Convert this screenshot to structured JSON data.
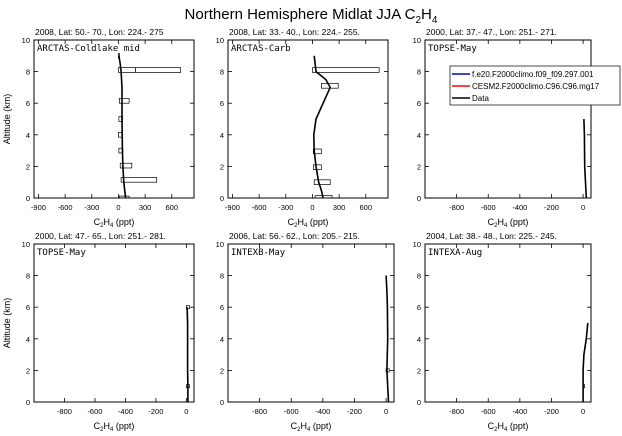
{
  "figure": {
    "title_main": "Northern Hemisphere Midlat JJA C",
    "title_sub": "2",
    "title_main2": "H",
    "title_sub2": "4"
  },
  "legend": {
    "entries": [
      {
        "label": "f.e20.F2000climo.f09_f09.297.001",
        "color": "#0000cc"
      },
      {
        "label": "CESM2.F2000climo.C96.C96.mg17",
        "color": "#ff0000"
      },
      {
        "label": "Data",
        "color": "#000000"
      }
    ]
  },
  "chart_data": [
    {
      "type": "line",
      "header": "2008, Lat:  50.- 70., Lon: 224.- 275",
      "label": "ARCTAS-Coldlake mid",
      "xlabel": "C2H4 (ppt)",
      "ylabel": "Altitude (km)",
      "xlim": [
        -950,
        850
      ],
      "ylim": [
        0,
        10
      ],
      "xticks": [
        -900,
        -600,
        -300,
        0,
        300,
        600
      ],
      "yticks": [
        0,
        2,
        4,
        6,
        8,
        10
      ],
      "series": [
        {
          "x": [
            80,
            70,
            60,
            50,
            45,
            42,
            40,
            40,
            40,
            30,
            20,
            5
          ],
          "y": [
            0,
            0.5,
            1,
            2,
            3,
            4,
            5,
            6,
            7,
            8,
            8.5,
            9
          ]
        }
      ],
      "boxes": [
        {
          "x0": 10,
          "x1": 120,
          "y0": 0,
          "y1": 0.12
        },
        {
          "x0": 30,
          "x1": 430,
          "y0": 1,
          "y1": 1.3
        },
        {
          "x0": 20,
          "x1": 150,
          "y0": 1.9,
          "y1": 2.2
        },
        {
          "x0": 5,
          "x1": 50,
          "y0": 2.85,
          "y1": 3.15
        },
        {
          "x0": 0,
          "x1": 40,
          "y0": 3.85,
          "y1": 4.15
        },
        {
          "x0": 5,
          "x1": 45,
          "y0": 4.85,
          "y1": 5.15
        },
        {
          "x0": 10,
          "x1": 120,
          "y0": 6.0,
          "y1": 6.3
        },
        {
          "x0": 0,
          "x1": 190,
          "y0": 7.95,
          "y1": 8.25
        },
        {
          "x0": 190,
          "x1": 700,
          "y0": 7.95,
          "y1": 8.25
        },
        {
          "x0": 0,
          "x1": 10,
          "y0": 8.85,
          "y1": 9.15
        }
      ]
    },
    {
      "type": "line",
      "header": "2008, Lat:  33.- 40., Lon: 224.- 255.",
      "label": "ARCTAS-Carb",
      "xlabel": "C2H4 (ppt)",
      "ylabel": "",
      "xlim": [
        -950,
        850
      ],
      "ylim": [
        0,
        10
      ],
      "xticks": [
        -900,
        -600,
        -300,
        0,
        300,
        600
      ],
      "yticks": [
        0,
        2,
        4,
        6,
        8,
        10
      ],
      "series": [
        {
          "x": [
            120,
            100,
            70,
            40,
            20,
            15,
            40,
            120,
            200,
            150,
            40,
            20
          ],
          "y": [
            0,
            0.5,
            1,
            2,
            3,
            4,
            5,
            6,
            7,
            7.5,
            8,
            9
          ]
        }
      ],
      "boxes": [
        {
          "x0": 30,
          "x1": 220,
          "y0": 0,
          "y1": 0.15
        },
        {
          "x0": 20,
          "x1": 200,
          "y0": 0.85,
          "y1": 1.15
        },
        {
          "x0": 10,
          "x1": 100,
          "y0": 1.8,
          "y1": 2.1
        },
        {
          "x0": 10,
          "x1": 100,
          "y0": 2.8,
          "y1": 3.1
        },
        {
          "x0": 100,
          "x1": 290,
          "y0": 6.95,
          "y1": 7.25
        },
        {
          "x0": 0,
          "x1": 750,
          "y0": 7.95,
          "y1": 8.25
        }
      ]
    },
    {
      "type": "line",
      "header": "2000, Lat:  37.- 47., Lon: 251.- 271.",
      "label": "TOPSE-May",
      "xlabel": "C2H4 (ppt)",
      "ylabel": "",
      "xlim": [
        -1000,
        50
      ],
      "ylim": [
        0,
        10
      ],
      "xticks": [
        -800,
        -600,
        -400,
        -200,
        0
      ],
      "yticks": [
        0,
        2,
        4,
        6,
        8,
        10
      ],
      "series": [
        {
          "x": [
            20,
            15,
            10,
            8,
            5
          ],
          "y": [
            0,
            1,
            2,
            4,
            5
          ]
        }
      ],
      "boxes": []
    },
    {
      "type": "line",
      "header": "2000, Lat:  47.- 65., Lon: 251.- 281.",
      "label": "TOPSE-May",
      "xlabel": "C2H4 (ppt)",
      "ylabel": "Altitude (km)",
      "xlim": [
        -1000,
        50
      ],
      "ylim": [
        0,
        10
      ],
      "xticks": [
        -800,
        -600,
        -400,
        -200,
        0
      ],
      "yticks": [
        0,
        2,
        4,
        6,
        8,
        10
      ],
      "series": [
        {
          "x": [
            10,
            10,
            8,
            8,
            8,
            5
          ],
          "y": [
            0,
            1,
            2,
            4,
            5,
            6
          ]
        }
      ],
      "boxes": [
        {
          "x0": 0,
          "x1": 20,
          "y0": 5.9,
          "y1": 6.1
        },
        {
          "x0": 0,
          "x1": 20,
          "y0": 0.9,
          "y1": 1.1
        }
      ]
    },
    {
      "type": "line",
      "header": "2006, Lat:  56.- 62., Lon: 205.- 215.",
      "label": "INTEXB-May",
      "xlabel": "C2H4 (ppt)",
      "ylabel": "",
      "xlim": [
        -1000,
        50
      ],
      "ylim": [
        0,
        10
      ],
      "xticks": [
        -800,
        -600,
        -400,
        -200,
        0
      ],
      "yticks": [
        0,
        2,
        4,
        6,
        8,
        10
      ],
      "series": [
        {
          "x": [
            15,
            10,
            5,
            10,
            8,
            5,
            0
          ],
          "y": [
            0,
            1,
            2,
            4,
            6,
            7,
            8
          ]
        }
      ],
      "boxes": [
        {
          "x0": 0,
          "x1": 20,
          "y0": 1.9,
          "y1": 2.1
        }
      ]
    },
    {
      "type": "line",
      "header": "2004, Lat:  38.- 48., Lon: 225.- 245.",
      "label": "INTEXA-Aug",
      "xlabel": "C2H4 (ppt)",
      "ylabel": "",
      "xlim": [
        -1000,
        50
      ],
      "ylim": [
        0,
        10
      ],
      "xticks": [
        -800,
        -600,
        -400,
        -200,
        0
      ],
      "yticks": [
        0,
        2,
        4,
        6,
        8,
        10
      ],
      "series": [
        {
          "x": [
            0,
            0,
            0,
            5,
            20,
            30
          ],
          "y": [
            0,
            1,
            2,
            3,
            4,
            5
          ]
        }
      ],
      "boxes": [
        {
          "x0": 0,
          "x1": 10,
          "y0": 0.9,
          "y1": 1.1
        }
      ]
    }
  ]
}
